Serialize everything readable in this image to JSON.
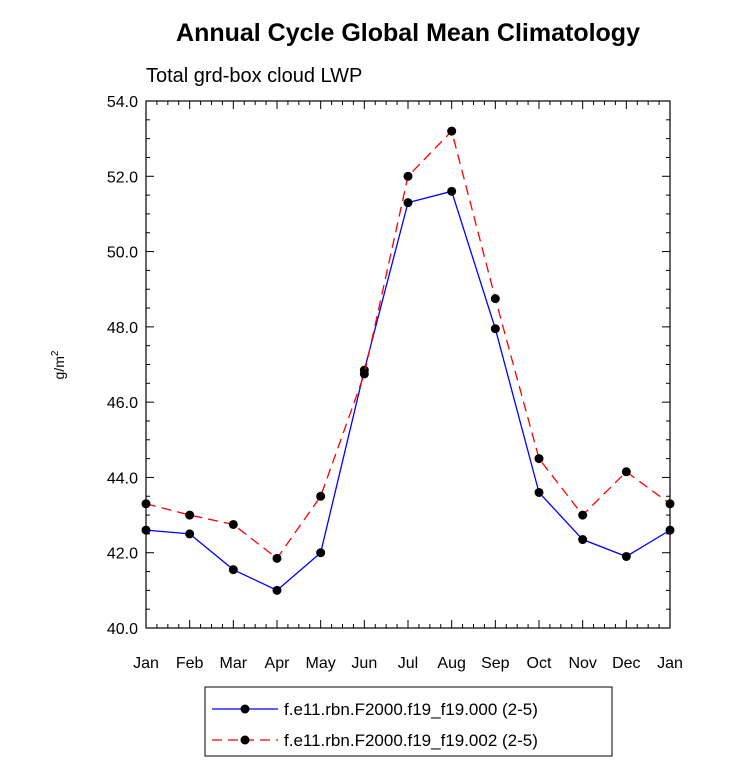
{
  "chart_data": {
    "type": "line",
    "title": "Annual Cycle Global Mean Climatology",
    "subtitle": "Total grd-box cloud LWP",
    "xlabel": "",
    "ylabel": "g/m",
    "ylabel_superscript": "2",
    "categories": [
      "Jan",
      "Feb",
      "Mar",
      "Apr",
      "May",
      "Jun",
      "Jul",
      "Aug",
      "Sep",
      "Oct",
      "Nov",
      "Dec",
      "Jan"
    ],
    "ylim": [
      40.0,
      54.0
    ],
    "yticks": [
      "40.0",
      "42.0",
      "44.0",
      "46.0",
      "48.0",
      "50.0",
      "52.0",
      "54.0"
    ],
    "series": [
      {
        "name": "f.e11.rbn.F2000.f19_f19.000 (2-5)",
        "color": "#0000ff",
        "dash": "solid",
        "values": [
          42.6,
          42.5,
          41.55,
          41.0,
          42.0,
          46.85,
          51.3,
          51.6,
          47.95,
          43.6,
          42.35,
          41.9,
          42.6
        ]
      },
      {
        "name": "f.e11.rbn.F2000.f19_f19.002 (2-5)",
        "color": "#ff0000",
        "dash": "dashed",
        "values": [
          43.3,
          43.0,
          42.75,
          41.85,
          43.5,
          46.75,
          52.0,
          53.2,
          48.75,
          44.5,
          43.0,
          44.15,
          43.3
        ]
      }
    ],
    "legend_position": "bottom"
  }
}
